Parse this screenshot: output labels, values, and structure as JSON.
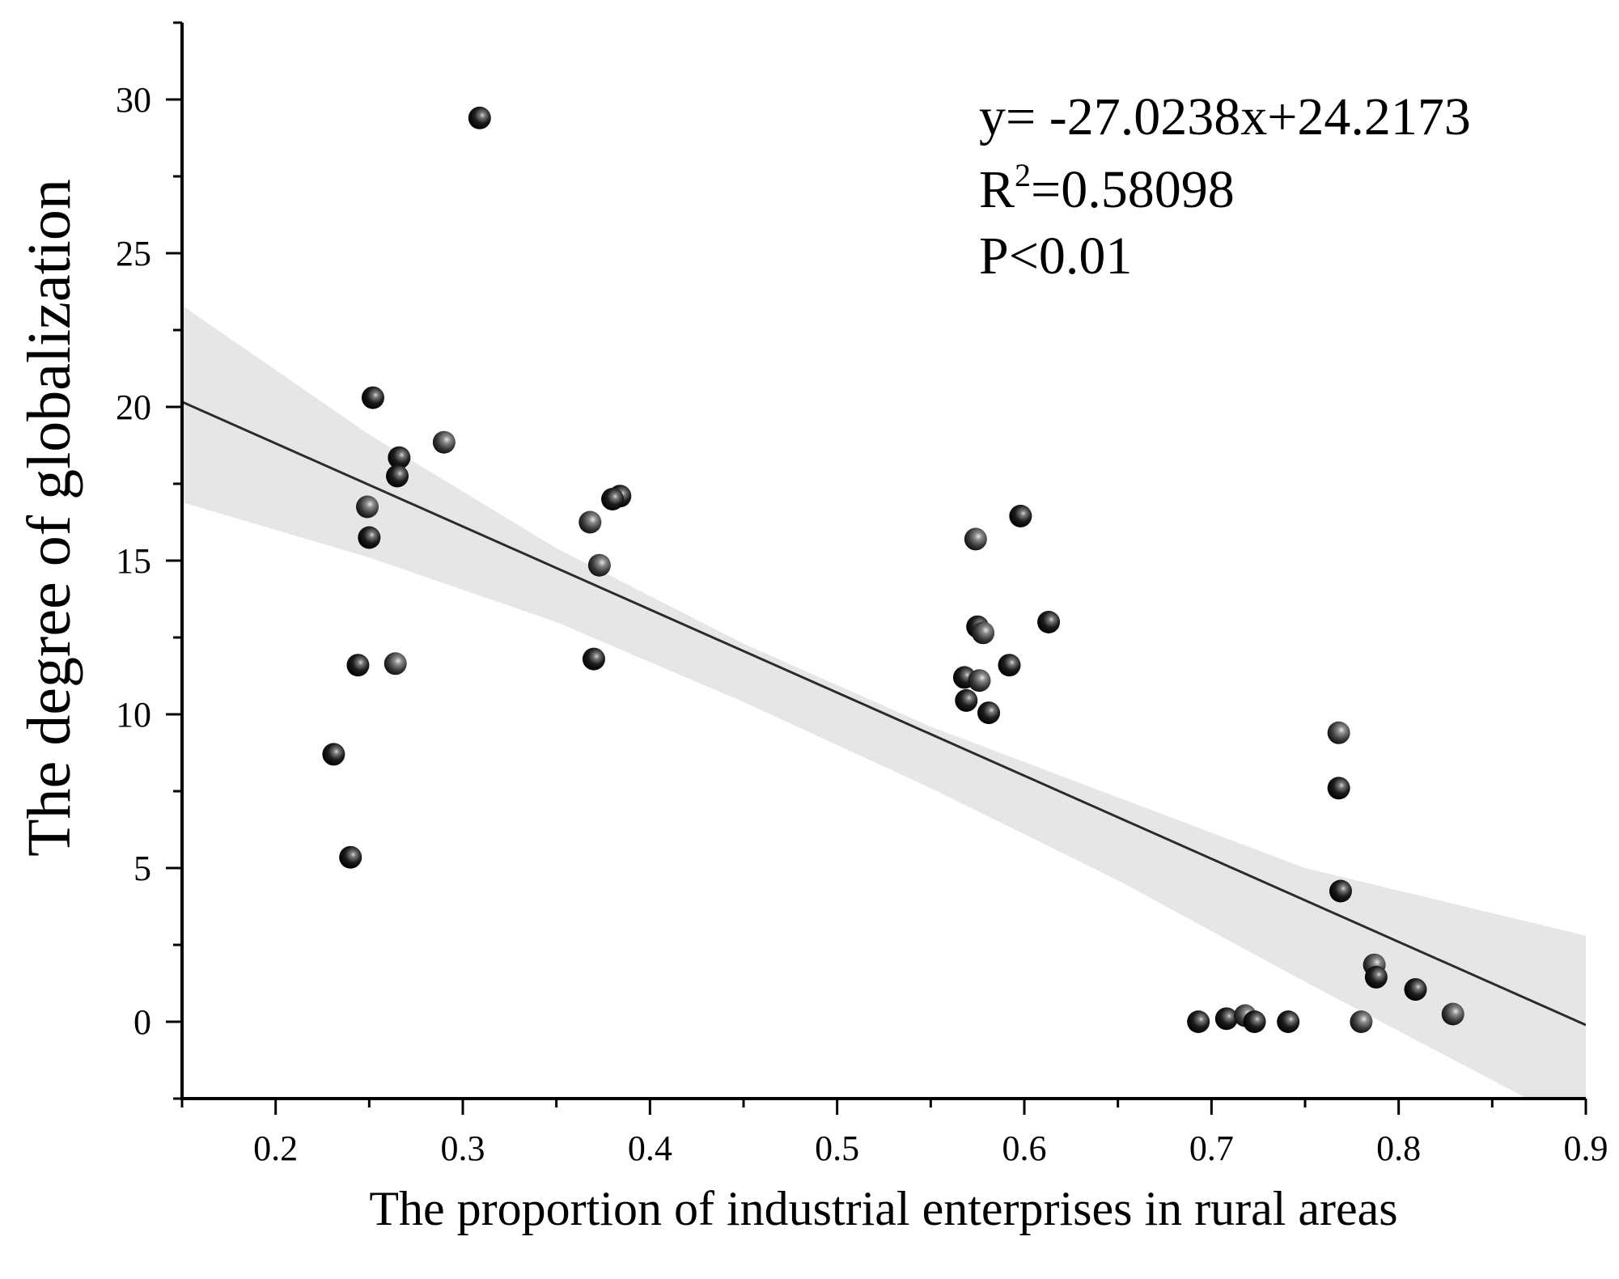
{
  "chart_data": {
    "type": "scatter",
    "title": "",
    "xlabel": "The proportion of industrial enterprises in rural areas",
    "ylabel": "The degree of globalization",
    "xlim": [
      0.15,
      0.9
    ],
    "ylim": [
      -2.5,
      32.5
    ],
    "xticks": [
      0.2,
      0.3,
      0.4,
      0.5,
      0.6,
      0.7,
      0.8,
      0.9
    ],
    "xtick_labels": [
      "0.2",
      "0.3",
      "0.4",
      "0.5",
      "0.6",
      "0.7",
      "0.8",
      "0.9"
    ],
    "yticks": [
      0,
      5,
      10,
      15,
      20,
      25,
      30
    ],
    "ytick_labels": [
      "0",
      "5",
      "10",
      "15",
      "20",
      "25",
      "30"
    ],
    "grid": false,
    "regression": {
      "slope": -27.0238,
      "intercept": 24.2173
    },
    "confidence_band": [
      {
        "x": 0.15,
        "lo": 16.9,
        "hi": 23.3
      },
      {
        "x": 0.25,
        "lo": 15.1,
        "hi": 19.1
      },
      {
        "x": 0.35,
        "lo": 13.0,
        "hi": 15.4
      },
      {
        "x": 0.45,
        "lo": 10.4,
        "hi": 12.3
      },
      {
        "x": 0.55,
        "lo": 7.6,
        "hi": 9.6
      },
      {
        "x": 0.65,
        "lo": 4.6,
        "hi": 7.3
      },
      {
        "x": 0.75,
        "lo": 1.3,
        "hi": 5.0
      },
      {
        "x": 0.9,
        "lo": -3.5,
        "hi": 2.8
      }
    ],
    "annotations": {
      "equation": "y= -27.0238x+24.2173",
      "r_squared_prefix": "R",
      "r_squared_exp": "2",
      "r_squared_value": "=0.58098",
      "p_value": "P<0.01"
    },
    "points": [
      {
        "x": 0.309,
        "y": 29.4
      },
      {
        "x": 0.252,
        "y": 20.3
      },
      {
        "x": 0.29,
        "y": 18.85
      },
      {
        "x": 0.266,
        "y": 18.35
      },
      {
        "x": 0.265,
        "y": 17.75
      },
      {
        "x": 0.249,
        "y": 16.75
      },
      {
        "x": 0.25,
        "y": 15.75
      },
      {
        "x": 0.244,
        "y": 11.6
      },
      {
        "x": 0.264,
        "y": 11.65
      },
      {
        "x": 0.231,
        "y": 8.7
      },
      {
        "x": 0.24,
        "y": 5.35
      },
      {
        "x": 0.368,
        "y": 16.25
      },
      {
        "x": 0.384,
        "y": 17.1
      },
      {
        "x": 0.38,
        "y": 17.0
      },
      {
        "x": 0.373,
        "y": 14.85
      },
      {
        "x": 0.37,
        "y": 11.8
      },
      {
        "x": 0.598,
        "y": 16.45
      },
      {
        "x": 0.574,
        "y": 15.7
      },
      {
        "x": 0.613,
        "y": 13.0
      },
      {
        "x": 0.575,
        "y": 12.85
      },
      {
        "x": 0.578,
        "y": 12.65
      },
      {
        "x": 0.592,
        "y": 11.6
      },
      {
        "x": 0.568,
        "y": 11.2
      },
      {
        "x": 0.576,
        "y": 11.1
      },
      {
        "x": 0.569,
        "y": 10.45
      },
      {
        "x": 0.581,
        "y": 10.05
      },
      {
        "x": 0.768,
        "y": 9.4
      },
      {
        "x": 0.768,
        "y": 7.6
      },
      {
        "x": 0.769,
        "y": 4.25
      },
      {
        "x": 0.787,
        "y": 1.85
      },
      {
        "x": 0.788,
        "y": 1.45
      },
      {
        "x": 0.809,
        "y": 1.05
      },
      {
        "x": 0.829,
        "y": 0.25
      },
      {
        "x": 0.693,
        "y": 0.0
      },
      {
        "x": 0.708,
        "y": 0.1
      },
      {
        "x": 0.718,
        "y": 0.2
      },
      {
        "x": 0.723,
        "y": 0.0
      },
      {
        "x": 0.741,
        "y": 0.0
      },
      {
        "x": 0.78,
        "y": 0.0
      }
    ]
  }
}
